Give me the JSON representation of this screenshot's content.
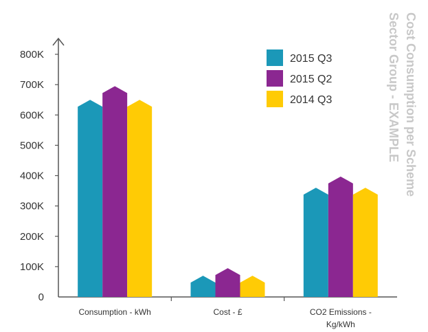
{
  "chart_data": {
    "type": "bar",
    "title": "Cost Consumption per Scheme",
    "subtitle": "Sector Group - EXAMPLE",
    "categories": [
      "Consumption  - kWh",
      "Cost - £",
      "CO2 Emissions - Kg/kWh"
    ],
    "category_lines": [
      [
        "Consumption  - kWh"
      ],
      [
        "Cost - £"
      ],
      [
        "CO2 Emissions -",
        "Kg/kWh"
      ]
    ],
    "series": [
      {
        "name": "2015 Q3",
        "values": [
          650000,
          70000,
          360000
        ]
      },
      {
        "name": "2015 Q2",
        "values": [
          695000,
          95000,
          397000
        ]
      },
      {
        "name": "2014 Q3",
        "values": [
          650000,
          70000,
          360000
        ]
      }
    ],
    "y_ticks": [
      "0",
      "100K",
      "200K",
      "300K",
      "400K",
      "500K",
      "600K",
      "700K",
      "800K"
    ],
    "ylim": [
      0,
      800000
    ],
    "legend_position": "top-right",
    "grid": false,
    "colors": [
      "#1b98b8",
      "#8b2791",
      "#ffcb05"
    ],
    "axis_color": "#555555"
  }
}
